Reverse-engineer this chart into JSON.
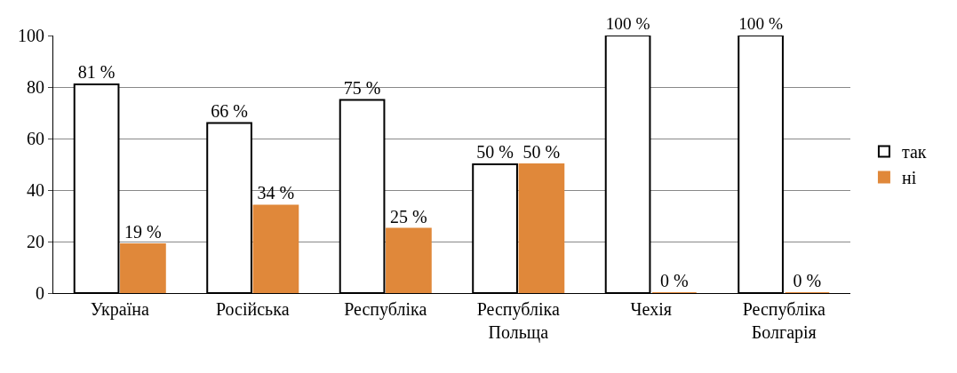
{
  "chart_data": {
    "type": "bar",
    "categories": [
      "Україна",
      "Російська",
      "Республіка",
      "Республіка Польща",
      "Чехія",
      "Республіка Болгарія"
    ],
    "series": [
      {
        "name": "так",
        "color": "#ffffff",
        "values": [
          81,
          66,
          75,
          50,
          100,
          100
        ],
        "value_labels": [
          "81 %",
          "66 %",
          "75 %",
          "50 %",
          "100 %",
          "100 %"
        ]
      },
      {
        "name": "ні",
        "color": "#e0883a",
        "values": [
          19,
          34,
          25,
          50,
          0,
          0
        ],
        "value_labels": [
          "19 %",
          "34 %",
          "25 %",
          "50 %",
          "0 %",
          "0 %"
        ]
      }
    ],
    "ylim": [
      0,
      100
    ],
    "yticks": [
      0,
      20,
      40,
      60,
      80,
      100
    ],
    "grid": "y",
    "legend": "right"
  }
}
